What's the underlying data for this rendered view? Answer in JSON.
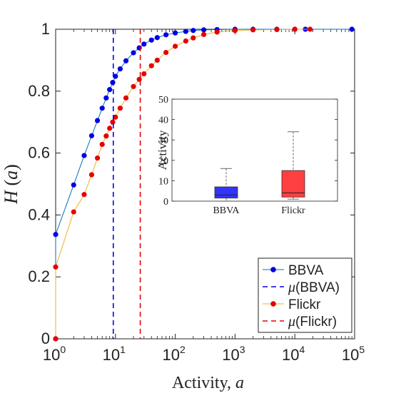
{
  "chart_data": [
    {
      "type": "line",
      "id": "main",
      "xlabel": "Activity, a",
      "ylabel": "H (a)",
      "xscale": "log",
      "xlim": [
        1,
        100000
      ],
      "ylim": [
        0,
        1
      ],
      "xticks": [
        1,
        10,
        100,
        1000,
        10000,
        100000
      ],
      "xtick_labels": [
        {
          "base": "10",
          "exp": "0"
        },
        {
          "base": "10",
          "exp": "1"
        },
        {
          "base": "10",
          "exp": "2"
        },
        {
          "base": "10",
          "exp": "3"
        },
        {
          "base": "10",
          "exp": "4"
        },
        {
          "base": "10",
          "exp": "5"
        }
      ],
      "yticks": [
        0,
        0.2,
        0.4,
        0.6,
        0.8,
        1
      ],
      "ytick_labels": [
        "0",
        "0.2",
        "0.4",
        "0.6",
        "0.8",
        "1"
      ],
      "grid": false,
      "legend_position": "bottom-right",
      "series": [
        {
          "name": "BBVA",
          "color": "#0000e6",
          "line_color": "#0072bd",
          "marker": "circle",
          "points": [
            [
              1,
              0.0
            ],
            [
              1,
              0.337
            ],
            [
              2,
              0.497
            ],
            [
              3,
              0.592
            ],
            [
              4,
              0.656
            ],
            [
              5,
              0.705
            ],
            [
              6,
              0.745
            ],
            [
              7,
              0.778
            ],
            [
              8,
              0.805
            ],
            [
              9,
              0.828
            ],
            [
              10,
              0.848
            ],
            [
              12,
              0.872
            ],
            [
              15,
              0.898
            ],
            [
              20,
              0.924
            ],
            [
              25,
              0.94
            ],
            [
              30,
              0.952
            ],
            [
              40,
              0.965
            ],
            [
              50,
              0.973
            ],
            [
              70,
              0.982
            ],
            [
              100,
              0.988
            ],
            [
              150,
              0.993
            ],
            [
              200,
              0.996
            ],
            [
              300,
              0.998
            ],
            [
              500,
              0.999
            ],
            [
              1000,
              1.0
            ],
            [
              2000,
              1.0
            ],
            [
              5000,
              1.0
            ],
            [
              10000,
              1.0
            ],
            [
              15000,
              1.0
            ],
            [
              90000,
              1.0
            ]
          ]
        },
        {
          "name": "Flickr",
          "color": "#e60000",
          "line_color": "#edb120",
          "marker": "circle",
          "points": [
            [
              1,
              0.0
            ],
            [
              1,
              0.232
            ],
            [
              2,
              0.41
            ],
            [
              3,
              0.466
            ],
            [
              4,
              0.53
            ],
            [
              5,
              0.584
            ],
            [
              6,
              0.628
            ],
            [
              7,
              0.655
            ],
            [
              8,
              0.68
            ],
            [
              9,
              0.7
            ],
            [
              10,
              0.716
            ],
            [
              12,
              0.745
            ],
            [
              15,
              0.778
            ],
            [
              20,
              0.815
            ],
            [
              25,
              0.838
            ],
            [
              30,
              0.856
            ],
            [
              40,
              0.882
            ],
            [
              50,
              0.9
            ],
            [
              70,
              0.925
            ],
            [
              100,
              0.945
            ],
            [
              150,
              0.962
            ],
            [
              200,
              0.972
            ],
            [
              300,
              0.983
            ],
            [
              500,
              0.991
            ],
            [
              1000,
              0.996
            ],
            [
              2000,
              0.998
            ],
            [
              5000,
              0.999
            ],
            [
              10000,
              1.0
            ],
            [
              18000,
              1.0
            ]
          ]
        }
      ],
      "vlines": [
        {
          "name": "μ(BBVA)",
          "x": 9.2,
          "color": "#0000e6",
          "style": "dashed"
        },
        {
          "name": "μ(Flickr)",
          "x": 26,
          "color": "#e60000",
          "style": "dashed"
        }
      ],
      "legend": [
        {
          "label": "BBVA",
          "kind": "marker-line",
          "color": "#0000e6",
          "line_color": "#0072bd"
        },
        {
          "label": "μ(BBVA)",
          "kind": "dashed",
          "color": "#0000e6"
        },
        {
          "label": "Flickr",
          "kind": "marker-line",
          "color": "#e60000",
          "line_color": "#edb120"
        },
        {
          "label": "μ(Flickr)",
          "kind": "dashed",
          "color": "#e60000"
        }
      ]
    },
    {
      "type": "box",
      "id": "inset",
      "ylabel": "Activity",
      "ylim": [
        0,
        50
      ],
      "yticks": [
        0,
        10,
        20,
        30,
        40,
        50
      ],
      "ytick_labels": [
        "0",
        "10",
        "20",
        "30",
        "40",
        "50"
      ],
      "categories": [
        "BBVA",
        "Flickr"
      ],
      "boxes": [
        {
          "name": "BBVA",
          "min": 0,
          "q1": 1.5,
          "median": 3,
          "q3": 7,
          "max": 16,
          "color": "#3333ff"
        },
        {
          "name": "Flickr",
          "min": 1,
          "q1": 2,
          "median": 4,
          "q3": 15,
          "max": 34,
          "color": "#ff4040"
        }
      ]
    }
  ]
}
